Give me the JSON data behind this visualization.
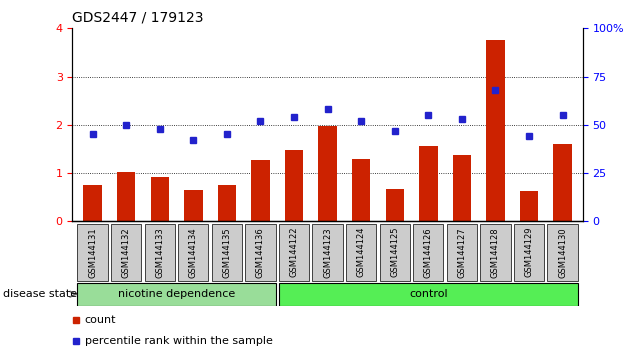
{
  "title": "GDS2447 / 179123",
  "categories": [
    "GSM144131",
    "GSM144132",
    "GSM144133",
    "GSM144134",
    "GSM144135",
    "GSM144136",
    "GSM144122",
    "GSM144123",
    "GSM144124",
    "GSM144125",
    "GSM144126",
    "GSM144127",
    "GSM144128",
    "GSM144129",
    "GSM144130"
  ],
  "bar_values": [
    0.75,
    1.02,
    0.92,
    0.65,
    0.75,
    1.28,
    1.47,
    1.97,
    1.3,
    0.67,
    1.57,
    1.37,
    3.75,
    0.63,
    1.6
  ],
  "dot_percentiles": [
    45,
    50,
    48,
    42,
    45,
    52,
    54,
    58,
    52,
    47,
    55,
    53,
    68,
    44,
    55
  ],
  "bar_color": "#cc2200",
  "dot_color": "#2222cc",
  "ylim_left": [
    0,
    4
  ],
  "ylim_right": [
    0,
    100
  ],
  "yticks_left": [
    0,
    1,
    2,
    3,
    4
  ],
  "yticks_right": [
    0,
    25,
    50,
    75,
    100
  ],
  "group1_label": "nicotine dependence",
  "group2_label": "control",
  "group1_count": 6,
  "group2_count": 9,
  "group1_color": "#99dd99",
  "group2_color": "#55ee55",
  "disease_state_label": "disease state",
  "legend_bar_label": "count",
  "legend_dot_label": "percentile rank within the sample",
  "bg_color": "#ffffff",
  "plot_bg_color": "#ffffff",
  "tick_label_bg": "#cccccc"
}
